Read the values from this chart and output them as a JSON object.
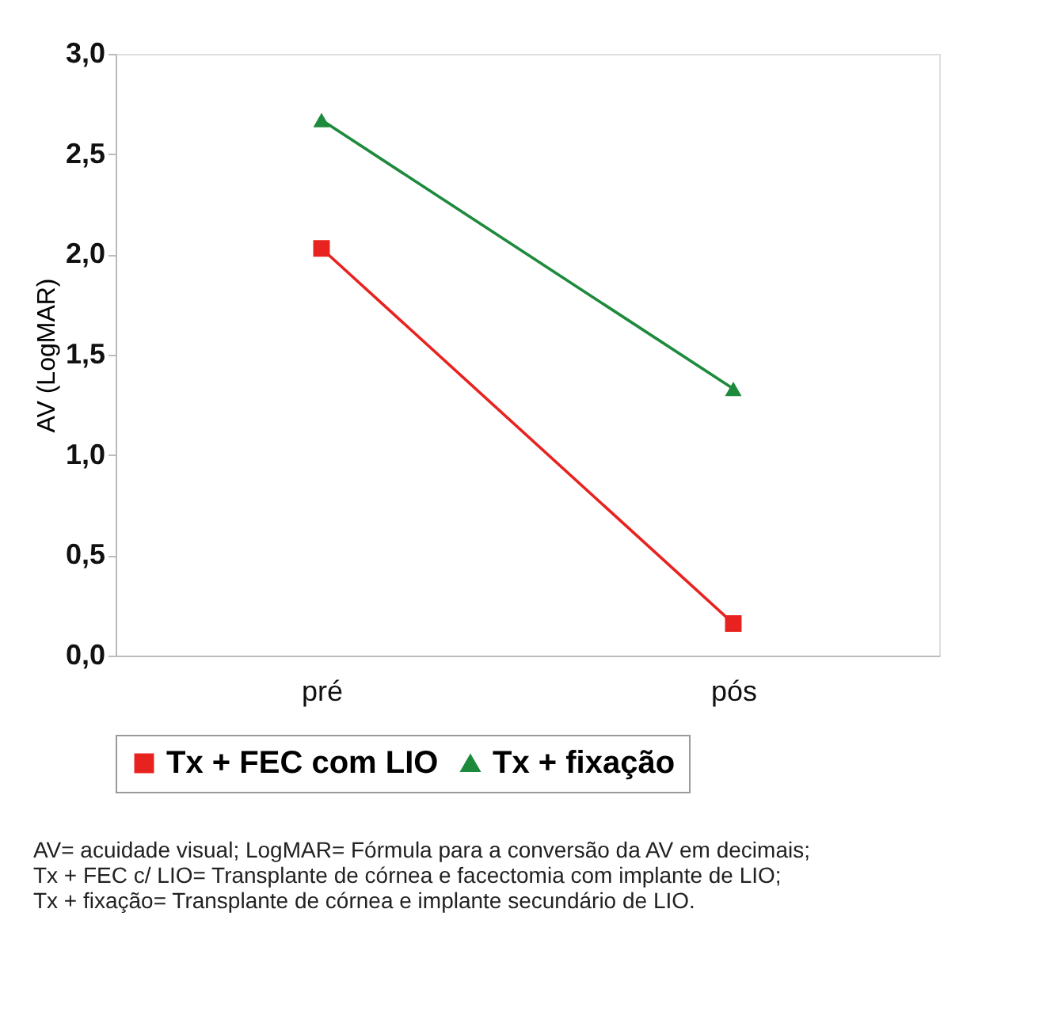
{
  "chart_data": {
    "type": "line",
    "ylabel": "AV (LogMAR)",
    "categories": [
      "pré",
      "pós"
    ],
    "series": [
      {
        "name": "Tx + FEC com LIO",
        "color": "#e8221f",
        "marker": "square",
        "values": [
          2.03,
          0.16
        ]
      },
      {
        "name": "Tx + fixação",
        "color": "#1e8a3c",
        "marker": "triangle",
        "values": [
          2.67,
          1.33
        ]
      }
    ],
    "ylim": [
      0,
      3
    ],
    "yticks": [
      {
        "value": 0,
        "label": "0,0"
      },
      {
        "value": 0.5,
        "label": "0,5"
      },
      {
        "value": 1,
        "label": "1,0"
      },
      {
        "value": 1.5,
        "label": "1,5"
      },
      {
        "value": 2,
        "label": "2,0"
      },
      {
        "value": 2.5,
        "label": "2,5"
      },
      {
        "value": 3,
        "label": "3,0"
      }
    ],
    "grid": false,
    "legend": "bottom",
    "line_style": "solid",
    "annotations": [
      "AV= acuidade visual; LogMAR= Fórmula para a conversão da AV em decimais;",
      "Tx + FEC c/ LIO= Transplante de córnea e facectomia com implante de LIO;",
      "Tx + fixação= Transplante de córnea e implante secundário de LIO."
    ]
  }
}
